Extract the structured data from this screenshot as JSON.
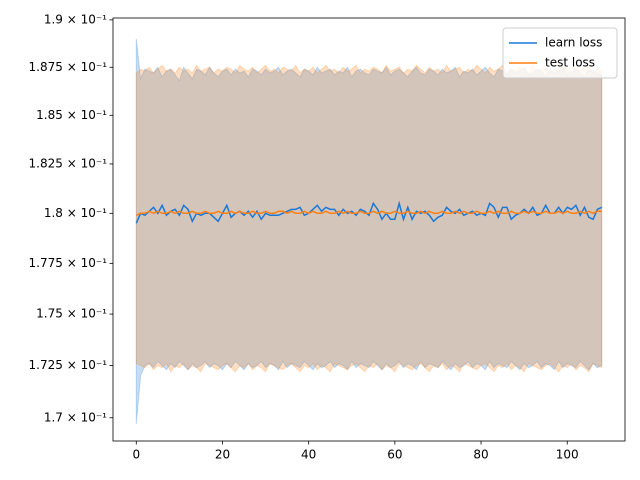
{
  "chart_data": {
    "type": "line",
    "x": [
      0,
      1,
      2,
      3,
      4,
      5,
      6,
      7,
      8,
      9,
      10,
      11,
      12,
      13,
      14,
      15,
      16,
      17,
      18,
      19,
      20,
      21,
      22,
      23,
      24,
      25,
      26,
      27,
      28,
      29,
      30,
      31,
      32,
      33,
      34,
      35,
      36,
      37,
      38,
      39,
      40,
      41,
      42,
      43,
      44,
      45,
      46,
      47,
      48,
      49,
      50,
      51,
      52,
      53,
      54,
      55,
      56,
      57,
      58,
      59,
      60,
      61,
      62,
      63,
      64,
      65,
      66,
      67,
      68,
      69,
      70,
      71,
      72,
      73,
      74,
      75,
      76,
      77,
      78,
      79,
      80,
      81,
      82,
      83,
      84,
      85,
      86,
      87,
      88,
      89,
      90,
      91,
      92,
      93,
      94,
      95,
      96,
      97,
      98,
      99,
      100,
      101,
      102,
      103,
      104,
      105,
      106,
      107,
      108
    ],
    "series": [
      {
        "name": "learn loss",
        "color": "#1a78d8",
        "values": [
          0.1795,
          0.18,
          0.1799,
          0.1801,
          0.1803,
          0.18,
          0.1804,
          0.1799,
          0.1801,
          0.1802,
          0.1799,
          0.1804,
          0.1802,
          0.1796,
          0.18,
          0.1799,
          0.18,
          0.18,
          0.1798,
          0.1796,
          0.18,
          0.1804,
          0.1798,
          0.18,
          0.1801,
          0.1799,
          0.1801,
          0.1798,
          0.1801,
          0.1797,
          0.18,
          0.1799,
          0.1799,
          0.1799,
          0.18,
          0.1801,
          0.1802,
          0.1802,
          0.1803,
          0.1799,
          0.18,
          0.1802,
          0.1804,
          0.1801,
          0.1803,
          0.1802,
          0.1802,
          0.1799,
          0.1802,
          0.18,
          0.1801,
          0.1799,
          0.1802,
          0.1801,
          0.1799,
          0.1805,
          0.1802,
          0.1797,
          0.18,
          0.1797,
          0.1797,
          0.1805,
          0.1797,
          0.1803,
          0.1797,
          0.1801,
          0.18,
          0.1801,
          0.1799,
          0.1796,
          0.1798,
          0.1799,
          0.1803,
          0.1801,
          0.18,
          0.1802,
          0.1799,
          0.18,
          0.1801,
          0.1799,
          0.18,
          0.1799,
          0.1805,
          0.1803,
          0.1798,
          0.1803,
          0.1803,
          0.1797,
          0.1799,
          0.18,
          0.1802,
          0.18,
          0.1803,
          0.1799,
          0.18,
          0.1804,
          0.18,
          0.18,
          0.1803,
          0.18,
          0.1803,
          0.1802,
          0.1804,
          0.1799,
          0.1803,
          0.1798,
          0.1797,
          0.1802,
          0.1803
        ],
        "upper": [
          0.189,
          0.1869,
          0.1874,
          0.1873,
          0.1872,
          0.1875,
          0.187,
          0.1873,
          0.1874,
          0.1871,
          0.1868,
          0.1875,
          0.1872,
          0.1869,
          0.1874,
          0.1873,
          0.1871,
          0.1875,
          0.1872,
          0.187,
          0.1873,
          0.1874,
          0.1871,
          0.1874,
          0.1872,
          0.1873,
          0.187,
          0.1874,
          0.1873,
          0.1871,
          0.1874,
          0.1872,
          0.1873,
          0.1875,
          0.1871,
          0.1873,
          0.1874,
          0.1872,
          0.187,
          0.1874,
          0.1873,
          0.1871,
          0.1875,
          0.1872,
          0.1873,
          0.1874,
          0.1871,
          0.1873,
          0.1872,
          0.1875,
          0.187,
          0.1873,
          0.1874,
          0.1872,
          0.1871,
          0.1874,
          0.1873,
          0.1872,
          0.1875,
          0.1871,
          0.1873,
          0.1874,
          0.1872,
          0.187,
          0.1873,
          0.1875,
          0.1872,
          0.1871,
          0.1874,
          0.1873,
          0.1871,
          0.1874,
          0.1872,
          0.1873,
          0.1875,
          0.187,
          0.1873,
          0.1872,
          0.1874,
          0.1871,
          0.1873,
          0.1875,
          0.1872,
          0.187,
          0.1874,
          0.1873,
          0.1871,
          0.1874,
          0.1872,
          0.1873,
          0.1875,
          0.1871,
          0.1872,
          0.1874,
          0.1873,
          0.187,
          0.1874,
          0.1872,
          0.1873,
          0.1875,
          0.1871,
          0.1873,
          0.1874,
          0.1872,
          0.187,
          0.1874,
          0.1873,
          0.1872,
          0.1871
        ],
        "lower": [
          0.1697,
          0.172,
          0.1725,
          0.1726,
          0.1724,
          0.1727,
          0.1725,
          0.1723,
          0.1726,
          0.1724,
          0.1727,
          0.1725,
          0.1723,
          0.1726,
          0.1724,
          0.1725,
          0.1727,
          0.1724,
          0.1726,
          0.1725,
          0.1723,
          0.1726,
          0.1724,
          0.1727,
          0.1725,
          0.1723,
          0.1726,
          0.1724,
          0.1725,
          0.1727,
          0.1724,
          0.1726,
          0.1725,
          0.1723,
          0.1727,
          0.1724,
          0.1726,
          0.1725,
          0.1724,
          0.1727,
          0.1725,
          0.1723,
          0.1726,
          0.1724,
          0.1725,
          0.1727,
          0.1724,
          0.1726,
          0.1725,
          0.1723,
          0.1727,
          0.1724,
          0.1726,
          0.1725,
          0.1724,
          0.1727,
          0.1725,
          0.1723,
          0.1726,
          0.1724,
          0.1725,
          0.1727,
          0.1724,
          0.1726,
          0.1725,
          0.1723,
          0.1727,
          0.1724,
          0.1726,
          0.1725,
          0.1724,
          0.1727,
          0.1725,
          0.1723,
          0.1726,
          0.1724,
          0.1725,
          0.1727,
          0.1724,
          0.1726,
          0.1725,
          0.1723,
          0.1727,
          0.1724,
          0.1726,
          0.1725,
          0.1724,
          0.1727,
          0.1725,
          0.1723,
          0.1726,
          0.1724,
          0.1725,
          0.1727,
          0.1724,
          0.1726,
          0.1725,
          0.1723,
          0.1727,
          0.1724,
          0.1726,
          0.1725,
          0.1724,
          0.1727,
          0.1725,
          0.1723,
          0.1726,
          0.1724,
          0.1725
        ]
      },
      {
        "name": "test loss",
        "color": "#ff7f0e",
        "values": [
          0.1799,
          0.18,
          0.18,
          0.1801,
          0.18,
          0.1801,
          0.18,
          0.18,
          0.1801,
          0.18,
          0.1801,
          0.18,
          0.18,
          0.1801,
          0.18,
          0.18,
          0.1801,
          0.18,
          0.18,
          0.1801,
          0.18,
          0.18,
          0.1801,
          0.18,
          0.1801,
          0.18,
          0.18,
          0.1801,
          0.18,
          0.18,
          0.1801,
          0.18,
          0.18,
          0.1801,
          0.1801,
          0.18,
          0.1801,
          0.18,
          0.18,
          0.1801,
          0.18,
          0.1801,
          0.18,
          0.18,
          0.1801,
          0.18,
          0.18,
          0.1801,
          0.18,
          0.1801,
          0.18,
          0.18,
          0.1801,
          0.18,
          0.18,
          0.1801,
          0.18,
          0.1801,
          0.18,
          0.18,
          0.1801,
          0.18,
          0.18,
          0.1801,
          0.18,
          0.18,
          0.1801,
          0.18,
          0.1801,
          0.18,
          0.18,
          0.1801,
          0.18,
          0.18,
          0.1801,
          0.18,
          0.1801,
          0.18,
          0.18,
          0.1801,
          0.18,
          0.18,
          0.1801,
          0.18,
          0.1801,
          0.18,
          0.18,
          0.1801,
          0.18,
          0.18,
          0.1801,
          0.18,
          0.1801,
          0.18,
          0.18,
          0.1801,
          0.18,
          0.18,
          0.1801,
          0.18,
          0.1801,
          0.18,
          0.18,
          0.1801,
          0.18,
          0.1801,
          0.18,
          0.1801,
          0.1801
        ],
        "upper": [
          0.1872,
          0.1874,
          0.1873,
          0.1875,
          0.1872,
          0.1874,
          0.1876,
          0.1873,
          0.1874,
          0.1872,
          0.1875,
          0.1873,
          0.1874,
          0.1872,
          0.1876,
          0.1873,
          0.1874,
          0.1875,
          0.1872,
          0.1874,
          0.1873,
          0.1875,
          0.1874,
          0.1872,
          0.1876,
          0.1874,
          0.1873,
          0.1875,
          0.1872,
          0.1874,
          0.1876,
          0.1873,
          0.1874,
          0.1872,
          0.1875,
          0.1874,
          0.1873,
          0.1876,
          0.1872,
          0.1874,
          0.1873,
          0.1875,
          0.1872,
          0.1874,
          0.1876,
          0.1873,
          0.1874,
          0.1872,
          0.1875,
          0.1873,
          0.1874,
          0.1876,
          0.1872,
          0.1874,
          0.1873,
          0.1875,
          0.1874,
          0.1872,
          0.1876,
          0.1873,
          0.1874,
          0.1875,
          0.1872,
          0.1874,
          0.1873,
          0.1876,
          0.1874,
          0.1872,
          0.1875,
          0.1873,
          0.1874,
          0.1872,
          0.1876,
          0.1873,
          0.1874,
          0.1875,
          0.1872,
          0.1874,
          0.1873,
          0.1876,
          0.1874,
          0.1872,
          0.1875,
          0.1873,
          0.1874,
          0.1876,
          0.1872,
          0.1874,
          0.1873,
          0.1875,
          0.1874,
          0.1872,
          0.1876,
          0.1873,
          0.1874,
          0.1875,
          0.1872,
          0.1874,
          0.1873,
          0.1876,
          0.1874,
          0.1872,
          0.1875,
          0.1873,
          0.1874,
          0.1876,
          0.1872,
          0.1874,
          0.1873
        ],
        "lower": [
          0.1726,
          0.1725,
          0.1724,
          0.1726,
          0.1723,
          0.1725,
          0.1724,
          0.1726,
          0.1722,
          0.1725,
          0.1724,
          0.1726,
          0.1723,
          0.1725,
          0.1724,
          0.1722,
          0.1726,
          0.1725,
          0.1724,
          0.1723,
          0.1725,
          0.1726,
          0.1724,
          0.1722,
          0.1725,
          0.1724,
          0.1726,
          0.1723,
          0.1725,
          0.1724,
          0.1722,
          0.1726,
          0.1725,
          0.1724,
          0.1723,
          0.1725,
          0.1726,
          0.1724,
          0.1722,
          0.1725,
          0.1724,
          0.1726,
          0.1723,
          0.1725,
          0.1724,
          0.1722,
          0.1726,
          0.1725,
          0.1724,
          0.1723,
          0.1725,
          0.1726,
          0.1724,
          0.1722,
          0.1725,
          0.1724,
          0.1726,
          0.1723,
          0.1725,
          0.1724,
          0.1722,
          0.1726,
          0.1725,
          0.1724,
          0.1723,
          0.1725,
          0.1726,
          0.1724,
          0.1722,
          0.1725,
          0.1724,
          0.1726,
          0.1723,
          0.1725,
          0.1724,
          0.1722,
          0.1726,
          0.1725,
          0.1724,
          0.1723,
          0.1725,
          0.1726,
          0.1724,
          0.1722,
          0.1725,
          0.1724,
          0.1726,
          0.1723,
          0.1725,
          0.1724,
          0.1722,
          0.1726,
          0.1725,
          0.1724,
          0.1723,
          0.1725,
          0.1726,
          0.1724,
          0.1722,
          0.1725,
          0.1724,
          0.1726,
          0.1723,
          0.1725,
          0.1724,
          0.1722,
          0.1726,
          0.1725,
          0.1724
        ]
      }
    ],
    "xlim": [
      -5.4,
      113.4
    ],
    "xticks": [
      0,
      20,
      40,
      60,
      80,
      100
    ],
    "ylim": [
      0.1689,
      0.1901
    ],
    "yscale": "log",
    "yticks": [
      {
        "value": 0.17,
        "label": "1.7 × 10⁻¹"
      },
      {
        "value": 0.1725,
        "label": "1.725 × 10⁻¹"
      },
      {
        "value": 0.175,
        "label": "1.75 × 10⁻¹"
      },
      {
        "value": 0.1775,
        "label": "1.775 × 10⁻¹"
      },
      {
        "value": 0.18,
        "label": "1.8 × 10⁻¹"
      },
      {
        "value": 0.1825,
        "label": "1.825 × 10⁻¹"
      },
      {
        "value": 0.185,
        "label": "1.85 × 10⁻¹"
      },
      {
        "value": 0.1875,
        "label": "1.875 × 10⁻¹"
      },
      {
        "value": 0.19,
        "label": "1.9 × 10⁻¹"
      }
    ],
    "band_opacity": 0.25,
    "legend": "upper right",
    "grid": false
  }
}
